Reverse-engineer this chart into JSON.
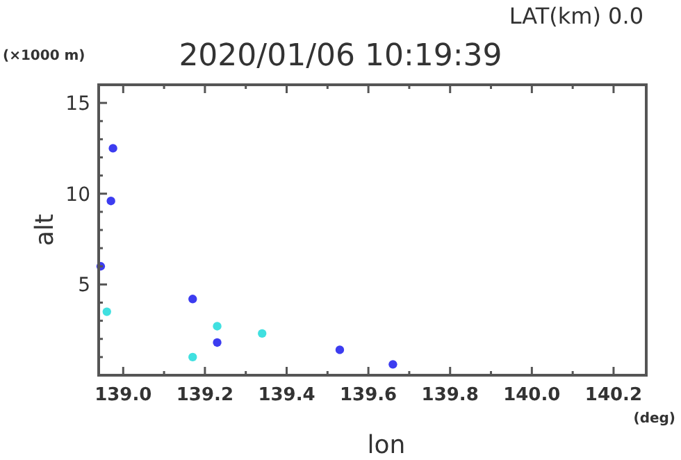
{
  "chart_data": {
    "type": "scatter",
    "title": "2020/01/06 10:19:39",
    "subtitle": "LAT(km) 0.0",
    "xlabel": "lon",
    "ylabel": "alt",
    "annotations": [
      "(×1000 m)",
      "(deg)"
    ],
    "xlim": [
      138.94,
      140.28
    ],
    "ylim": [
      0,
      16
    ],
    "xticks": [
      {
        "value": 139.0,
        "label": "139.0"
      },
      {
        "value": 139.1,
        "label": null
      },
      {
        "value": 139.2,
        "label": "139.2"
      },
      {
        "value": 139.3,
        "label": null
      },
      {
        "value": 139.4,
        "label": "139.4"
      },
      {
        "value": 139.5,
        "label": null
      },
      {
        "value": 139.6,
        "label": "139.6"
      },
      {
        "value": 139.7,
        "label": null
      },
      {
        "value": 139.8,
        "label": "139.8"
      },
      {
        "value": 139.9,
        "label": null
      },
      {
        "value": 140.0,
        "label": "140.0"
      },
      {
        "value": 140.1,
        "label": null
      },
      {
        "value": 140.2,
        "label": "140.2"
      }
    ],
    "yticks": [
      {
        "value": 1,
        "label": null
      },
      {
        "value": 2,
        "label": null
      },
      {
        "value": 3,
        "label": null
      },
      {
        "value": 4,
        "label": null
      },
      5,
      {
        "value": 6,
        "label": null
      },
      {
        "value": 7,
        "label": null
      },
      {
        "value": 8,
        "label": null
      },
      {
        "value": 9,
        "label": null
      },
      10,
      {
        "value": 11,
        "label": null
      },
      {
        "value": 12,
        "label": null
      },
      {
        "value": 13,
        "label": null
      },
      {
        "value": 14,
        "label": null
      },
      15
    ],
    "marker": "circle",
    "grid": false,
    "series": [
      {
        "color": "#3c3cf0",
        "x": [
          138.945,
          138.97,
          138.975,
          139.17,
          139.23,
          139.53,
          139.66
        ],
        "values": [
          6.0,
          9.6,
          12.5,
          4.2,
          1.8,
          1.4,
          0.6
        ]
      },
      {
        "color": "#40e0e0",
        "x": [
          138.96,
          139.17,
          139.23,
          139.34
        ],
        "values": [
          3.5,
          1.0,
          2.7,
          2.3
        ]
      }
    ]
  }
}
